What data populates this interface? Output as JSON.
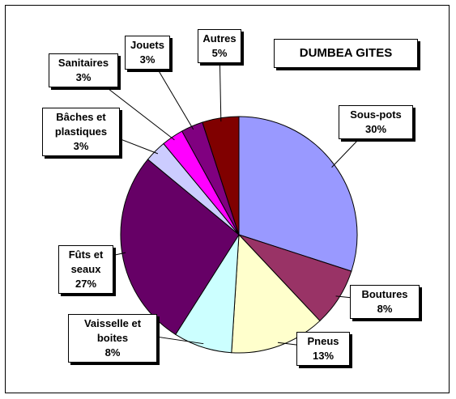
{
  "chart_data": {
    "type": "pie",
    "title": "DUMBEA GITES",
    "categories": [
      "Sous-pots",
      "Boutures",
      "Pneus",
      "Vaisselle et boites",
      "Fûts et seaux",
      "Bâches et plastiques",
      "Sanitaires",
      "Jouets",
      "Autres"
    ],
    "values": [
      30,
      8,
      13,
      8,
      27,
      3,
      3,
      3,
      5
    ],
    "value_labels": [
      "30%",
      "8%",
      "13%",
      "8%",
      "27%",
      "3%",
      "3%",
      "3%",
      "5%"
    ],
    "colors": [
      "#9999ff",
      "#993366",
      "#ffffcc",
      "#ccffff",
      "#660066",
      "#ccccff",
      "#ff00ff",
      "#800080",
      "#800000"
    ]
  }
}
